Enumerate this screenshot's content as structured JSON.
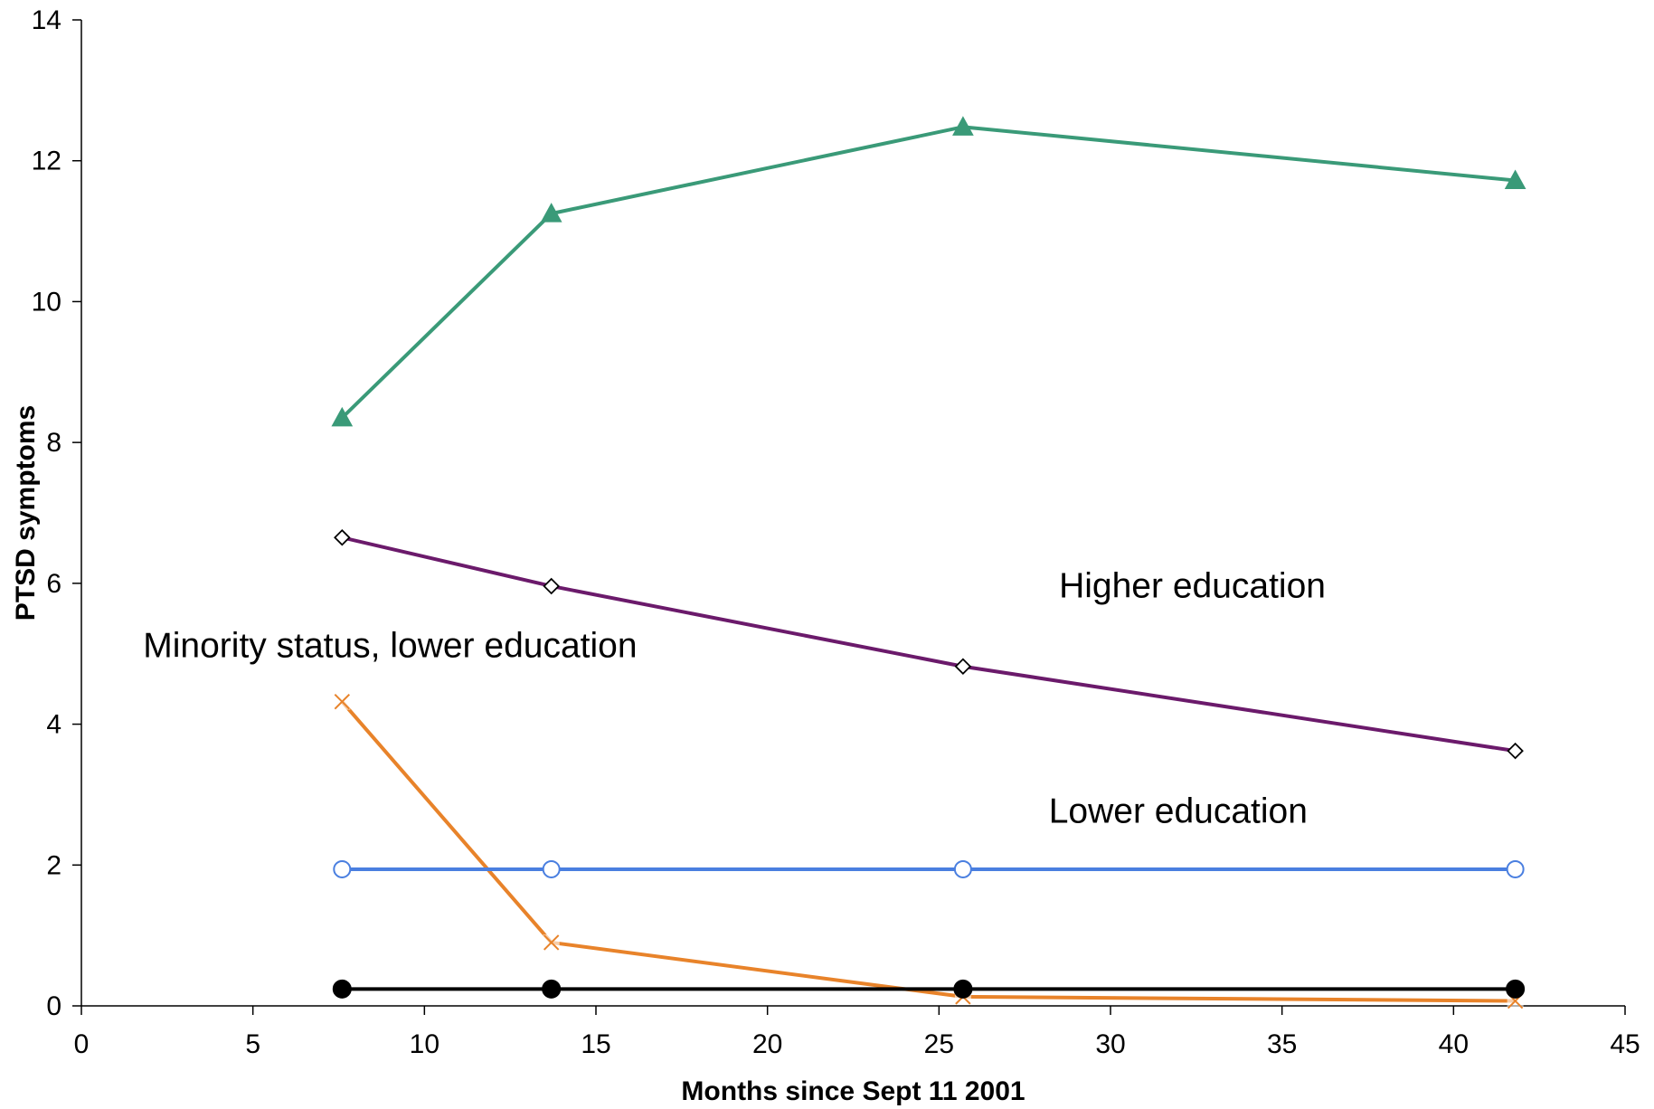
{
  "chart_data": {
    "type": "line",
    "title": "",
    "xlabel": "Months since Sept 11 2001",
    "ylabel": "PTSD symptoms",
    "xlim": [
      0,
      45
    ],
    "ylim": [
      0,
      14
    ],
    "xticks": [
      0,
      5,
      10,
      15,
      20,
      25,
      30,
      35,
      40,
      45
    ],
    "yticks": [
      0,
      2,
      4,
      6,
      8,
      10,
      12,
      14
    ],
    "grid": false,
    "legend": "none",
    "series": [
      {
        "color": "#3a9a78",
        "marker": "triangle",
        "x": [
          7.6,
          13.7,
          25.7,
          41.8
        ],
        "y": [
          8.35,
          11.25,
          12.48,
          11.72
        ]
      },
      {
        "color": "#6b1a6b",
        "marker": "diamond-open",
        "x": [
          7.6,
          13.7,
          25.7,
          41.8
        ],
        "y": [
          6.65,
          5.96,
          4.82,
          3.62
        ]
      },
      {
        "color": "#e8832a",
        "marker": "x",
        "x": [
          7.6,
          13.7,
          25.7,
          41.8
        ],
        "y": [
          4.32,
          0.9,
          0.13,
          0.07
        ]
      },
      {
        "color": "#4a7fe0",
        "marker": "circle-open",
        "x": [
          7.6,
          13.7,
          25.7,
          41.8
        ],
        "y": [
          1.94,
          1.94,
          1.94,
          1.94
        ]
      },
      {
        "color": "#000000",
        "marker": "circle-filled",
        "x": [
          7.6,
          13.7,
          25.7,
          41.8
        ],
        "y": [
          0.24,
          0.24,
          0.24,
          0.24
        ]
      }
    ],
    "annotations": [
      {
        "text": "Higher education",
        "x": 28.5,
        "y": 5.8
      },
      {
        "text": "Minority status, lower education",
        "x": 1.8,
        "y": 4.95
      },
      {
        "text": "Lower education",
        "x": 28.2,
        "y": 2.6
      }
    ]
  }
}
